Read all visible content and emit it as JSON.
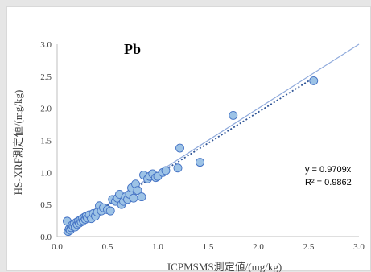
{
  "chart_data": {
    "type": "scatter",
    "title": "Pb",
    "xlabel": "ICPMSMS測定値/(mg/kg)",
    "ylabel": "HS-XRF測定値/(mg/kg)",
    "xlim": [
      0.0,
      3.0
    ],
    "ylim": [
      0.0,
      3.0
    ],
    "x_ticks": [
      "0.0",
      "0.5",
      "1.0",
      "1.5",
      "2.0",
      "2.5",
      "3.0"
    ],
    "y_ticks": [
      "0.0",
      "0.5",
      "1.0",
      "1.5",
      "2.0",
      "2.5",
      "3.0"
    ],
    "grid": "none",
    "legend": "none",
    "points": {
      "x": [
        0.1,
        0.11,
        0.12,
        0.13,
        0.14,
        0.15,
        0.16,
        0.17,
        0.18,
        0.19,
        0.2,
        0.21,
        0.22,
        0.23,
        0.24,
        0.25,
        0.26,
        0.27,
        0.28,
        0.29,
        0.3,
        0.32,
        0.34,
        0.36,
        0.38,
        0.4,
        0.42,
        0.44,
        0.46,
        0.5,
        0.53,
        0.55,
        0.58,
        0.6,
        0.62,
        0.64,
        0.66,
        0.68,
        0.7,
        0.72,
        0.74,
        0.76,
        0.78,
        0.8,
        0.84,
        0.86,
        0.9,
        0.92,
        0.95,
        0.98,
        1.0,
        1.05,
        1.08,
        1.2,
        1.22,
        1.42,
        1.75,
        2.55
      ],
      "y": [
        0.24,
        0.08,
        0.12,
        0.1,
        0.14,
        0.18,
        0.16,
        0.2,
        0.15,
        0.22,
        0.19,
        0.24,
        0.21,
        0.26,
        0.23,
        0.28,
        0.25,
        0.3,
        0.27,
        0.32,
        0.29,
        0.34,
        0.28,
        0.36,
        0.32,
        0.38,
        0.48,
        0.4,
        0.45,
        0.42,
        0.4,
        0.58,
        0.55,
        0.6,
        0.66,
        0.5,
        0.55,
        0.62,
        0.58,
        0.66,
        0.76,
        0.6,
        0.82,
        0.72,
        0.62,
        0.96,
        0.9,
        0.94,
        0.98,
        0.92,
        0.94,
        1.0,
        1.03,
        1.07,
        1.38,
        1.16,
        1.89,
        2.43
      ]
    },
    "trendline": {
      "slope": 0.9709,
      "style": "dotted"
    },
    "reference_line": {
      "slope": 1.0,
      "style": "solid"
    },
    "annotations": [
      "y = 0.9709x",
      "R² = 0.9862"
    ],
    "colors": {
      "marker_fill": "#9dc3e6",
      "marker_stroke": "#4472c4",
      "trendline": "#2f5597",
      "reference_line": "#8faadc",
      "axis": "#bfbfbf",
      "text": "#404040"
    }
  }
}
